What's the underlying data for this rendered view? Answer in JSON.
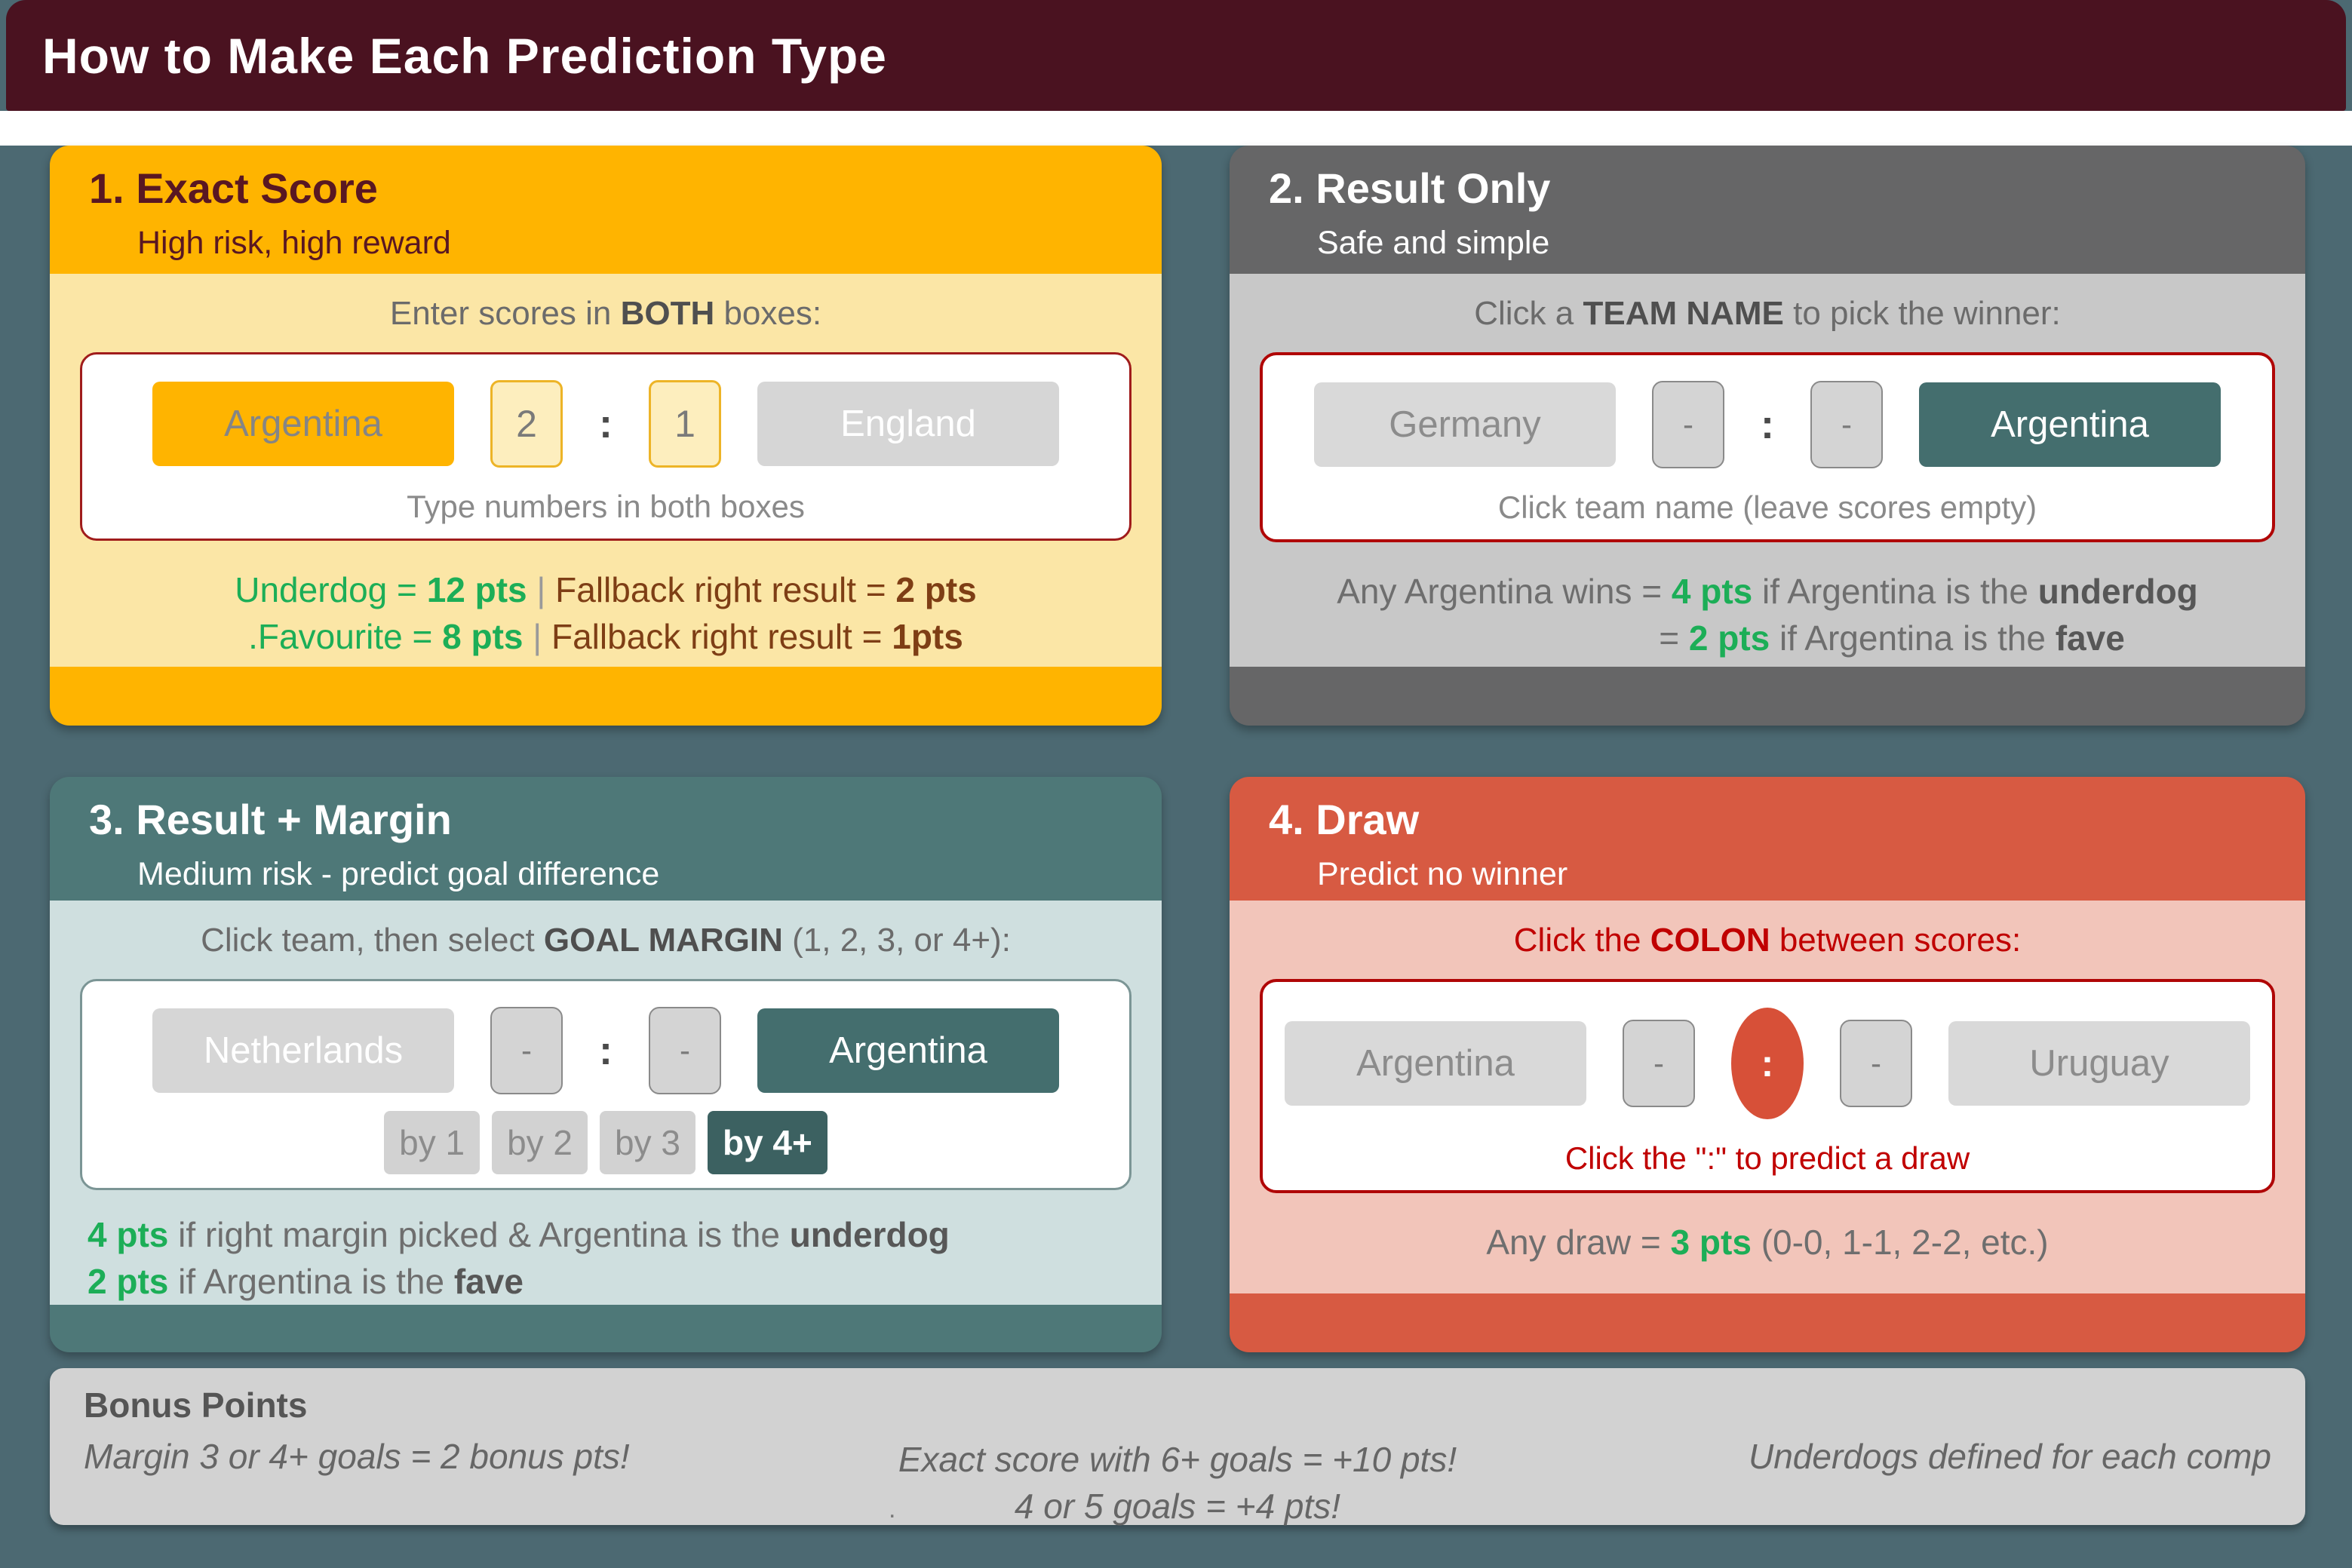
{
  "page": {
    "title": "How to Make Each Prediction Type",
    "colors": {
      "background": "#4C6972",
      "title_bar": "#4A1220",
      "panel1_accent": "#FFB400",
      "panel2_accent": "#666667",
      "panel3_accent": "#4E7878",
      "panel4_accent": "#D75A42",
      "points_green": "#1CAE57",
      "points_brown": "#7E3E15",
      "alert_red": "#C00000"
    }
  },
  "panels": {
    "exact_score": {
      "title": "1. Exact Score",
      "subtitle": "High risk, high reward",
      "instruction": {
        "pre": "Enter scores in ",
        "bold": "BOTH",
        "post": " boxes:"
      },
      "widget": {
        "home_team": "Argentina",
        "home_score": "2",
        "colon": ":",
        "away_score": "1",
        "away_team": "England",
        "caption": "Type numbers in both boxes"
      },
      "points": {
        "line1": {
          "label": "Underdog = ",
          "pts": "12 pts",
          "sep": " | ",
          "fallback_label": "Fallback right result = ",
          "fallback_pts": "2 pts"
        },
        "line2": {
          "label": ".Favourite = ",
          "pts": "8 pts",
          "sep": " | ",
          "fallback_label": "Fallback right result = ",
          "fallback_pts": "1pts"
        }
      }
    },
    "result_only": {
      "title": "2. Result Only",
      "subtitle": "Safe and simple",
      "instruction": {
        "pre": "Click a ",
        "bold": "TEAM NAME",
        "post": " to pick the winner:"
      },
      "widget": {
        "home_team": "Germany",
        "home_score": "-",
        "colon": ":",
        "away_score": "-",
        "away_team": "Argentina",
        "caption": "Click team name (leave scores empty)"
      },
      "points": {
        "line1": {
          "pre": "Any Argentina wins = ",
          "pts": "4 pts",
          "mid": " if Argentina is the ",
          "bold": "underdog"
        },
        "line2": {
          "pre": "= ",
          "pts": "2 pts",
          "mid": " if Argentina is the ",
          "bold": "fave"
        }
      }
    },
    "result_margin": {
      "title": "3. Result + Margin",
      "subtitle": "Medium risk - predict goal difference",
      "instruction": {
        "pre": "Click team, then select ",
        "bold": "GOAL MARGIN",
        "post": " (1, 2, 3, or 4+):"
      },
      "widget": {
        "home_team": "Netherlands",
        "home_score": "-",
        "colon": ":",
        "away_score": "-",
        "away_team": "Argentina",
        "margins": [
          "by 1",
          "by 2",
          "by 3",
          "by 4+"
        ],
        "selected_margin": "by 4+"
      },
      "points": {
        "line1": {
          "pts": "4 pts",
          "mid": " if right margin picked & Argentina is the ",
          "bold": "underdog"
        },
        "line2": {
          "pts": "2 pts",
          "mid": " if Argentina is the ",
          "bold": "fave"
        }
      }
    },
    "draw": {
      "title": "4. Draw",
      "subtitle": "Predict no winner",
      "instruction": {
        "pre": "Click the ",
        "bold": "COLON",
        "post": " between scores:"
      },
      "widget": {
        "home_team": "Argentina",
        "home_score": "-",
        "colon": ":",
        "away_score": "-",
        "away_team": "Uruguay",
        "caption": "Click the \":\" to predict a draw"
      },
      "points": {
        "line1": {
          "pre": "Any draw = ",
          "pts": "3 pts",
          "post": " (0-0, 1-1, 2-2, etc.)"
        }
      }
    }
  },
  "bonus": {
    "title": "Bonus Points",
    "left": "Margin 3 or 4+ goals = 2 bonus pts!",
    "center_line1": "Exact score with 6+ goals = +10 pts!",
    "center_line2": "4 or 5 goals = +4 pts!",
    "right": "Underdogs defined for each comp",
    "dot": "."
  }
}
